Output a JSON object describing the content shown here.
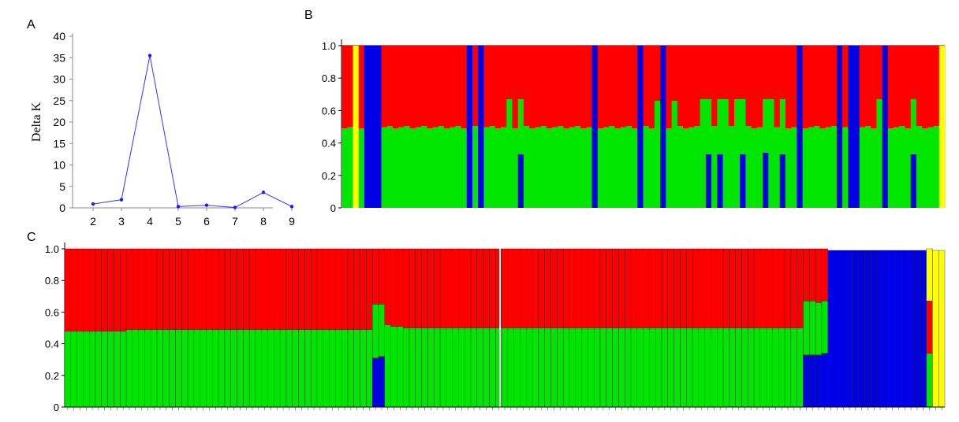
{
  "colors": {
    "red": "#ff0000",
    "green": "#00e600",
    "blue": "#0000e6",
    "yellow": "#ffff00",
    "line": "#3333ff",
    "border": "#000000"
  },
  "chart_data": [
    {
      "panel": "A",
      "type": "line",
      "ylabel": "Delta K",
      "x": [
        2,
        3,
        4,
        5,
        6,
        7,
        8,
        9
      ],
      "values": [
        0.9,
        1.9,
        35.5,
        0.3,
        0.6,
        0.1,
        3.6,
        0.3
      ],
      "ylim": [
        0,
        40
      ],
      "yticks": [
        0,
        5,
        10,
        15,
        20,
        25,
        30,
        35,
        40
      ],
      "xticks": [
        2,
        3,
        4,
        5,
        6,
        7,
        8,
        9
      ],
      "series_color": "line"
    },
    {
      "panel": "B",
      "type": "bar",
      "stacked": true,
      "ylim": [
        0,
        1
      ],
      "yticks": [
        "0",
        "0.2",
        "0.4",
        "0.6",
        "0.8",
        "1.0"
      ],
      "segments": [
        {
          "n": 2,
          "comp": "50R"
        },
        {
          "n": 1,
          "comp": "Y"
        },
        {
          "n": 1,
          "comp": "50R"
        },
        {
          "n": 3,
          "comp": "B"
        },
        {
          "n": 15,
          "comp": "50R"
        },
        {
          "n": 1,
          "comp": "B"
        },
        {
          "n": 1,
          "comp": "50R"
        },
        {
          "n": 1,
          "comp": "B"
        },
        {
          "n": 6,
          "comp": "50R"
        },
        {
          "n": 1,
          "comp": "33B"
        },
        {
          "n": 12,
          "comp": "50R"
        },
        {
          "n": 1,
          "comp": "B"
        },
        {
          "n": 7,
          "comp": "50R"
        },
        {
          "n": 1,
          "comp": "B"
        },
        {
          "n": 3,
          "comp": "50R"
        },
        {
          "n": 1,
          "comp": "B"
        },
        {
          "n": 7,
          "comp": "50R"
        },
        {
          "n": 1,
          "comp": "33B"
        },
        {
          "n": 1,
          "comp": "50R"
        },
        {
          "n": 1,
          "comp": "33B"
        },
        {
          "n": 3,
          "comp": "50R"
        },
        {
          "n": 1,
          "comp": "33B"
        },
        {
          "n": 3,
          "comp": "50R"
        },
        {
          "n": 1,
          "comp": "34B"
        },
        {
          "n": 2,
          "comp": "50R"
        },
        {
          "n": 1,
          "comp": "33B"
        },
        {
          "n": 2,
          "comp": "50R"
        },
        {
          "n": 1,
          "comp": "B"
        },
        {
          "n": 6,
          "comp": "50R"
        },
        {
          "n": 1,
          "comp": "B"
        },
        {
          "n": 1,
          "comp": "50R"
        },
        {
          "n": 2,
          "comp": "B"
        },
        {
          "n": 4,
          "comp": "50R"
        },
        {
          "n": 1,
          "comp": "B"
        },
        {
          "n": 4,
          "comp": "50R"
        },
        {
          "n": 1,
          "comp": "33B"
        },
        {
          "n": 4,
          "comp": "50R"
        },
        {
          "n": 1,
          "comp": "Y"
        }
      ],
      "greenBoost": {
        "29": 0.67,
        "55": 0.66,
        "56": 0.63,
        "58": 0.66,
        "63": 0.67,
        "67": 0.67,
        "69": 0.67,
        "70": 0.62,
        "75": 0.67,
        "94": 0.67
      }
    },
    {
      "panel": "C",
      "type": "bar",
      "stacked": true,
      "ylim": [
        0,
        1
      ],
      "yticks": [
        "0",
        "0.2",
        "0.4",
        "0.6",
        "0.8",
        "1.0"
      ],
      "bars": [
        [
          0.0,
          0.48,
          0.52,
          0.0
        ],
        [
          0.0,
          0.48,
          0.52,
          0.0
        ],
        [
          0.0,
          0.48,
          0.52,
          0.0
        ],
        [
          0.0,
          0.48,
          0.52,
          0.0
        ],
        [
          0.0,
          0.48,
          0.52,
          0.0
        ],
        [
          0.0,
          0.48,
          0.52,
          0.0
        ],
        [
          0.0,
          0.48,
          0.52,
          0.0
        ],
        [
          0.0,
          0.48,
          0.52,
          0.0
        ],
        [
          0.0,
          0.48,
          0.52,
          0.0
        ],
        [
          0.0,
          0.48,
          0.52,
          0.0
        ],
        [
          0.0,
          0.49,
          0.51,
          0.0
        ],
        [
          0.0,
          0.49,
          0.51,
          0.0
        ],
        [
          0.0,
          0.49,
          0.51,
          0.0
        ],
        [
          0.0,
          0.49,
          0.51,
          0.0
        ],
        [
          0.0,
          0.49,
          0.51,
          0.0
        ],
        [
          0.0,
          0.49,
          0.51,
          0.0
        ],
        [
          0.0,
          0.49,
          0.51,
          0.0
        ],
        [
          0.0,
          0.49,
          0.51,
          0.0
        ],
        [
          0.0,
          0.49,
          0.51,
          0.0
        ],
        [
          0.0,
          0.49,
          0.51,
          0.0
        ],
        [
          0.0,
          0.49,
          0.51,
          0.0
        ],
        [
          0.0,
          0.49,
          0.51,
          0.0
        ],
        [
          0.0,
          0.49,
          0.51,
          0.0
        ],
        [
          0.0,
          0.49,
          0.51,
          0.0
        ],
        [
          0.0,
          0.49,
          0.51,
          0.0
        ],
        [
          0.0,
          0.49,
          0.51,
          0.0
        ],
        [
          0.0,
          0.49,
          0.51,
          0.0
        ],
        [
          0.0,
          0.49,
          0.51,
          0.0
        ],
        [
          0.0,
          0.49,
          0.51,
          0.0
        ],
        [
          0.0,
          0.49,
          0.51,
          0.0
        ],
        [
          0.0,
          0.49,
          0.51,
          0.0
        ],
        [
          0.0,
          0.49,
          0.51,
          0.0
        ],
        [
          0.0,
          0.49,
          0.51,
          0.0
        ],
        [
          0.0,
          0.49,
          0.51,
          0.0
        ],
        [
          0.0,
          0.49,
          0.51,
          0.0
        ],
        [
          0.0,
          0.49,
          0.51,
          0.0
        ],
        [
          0.0,
          0.49,
          0.51,
          0.0
        ],
        [
          0.0,
          0.49,
          0.51,
          0.0
        ],
        [
          0.0,
          0.49,
          0.51,
          0.0
        ],
        [
          0.0,
          0.49,
          0.51,
          0.0
        ],
        [
          0.0,
          0.49,
          0.51,
          0.0
        ],
        [
          0.0,
          0.49,
          0.51,
          0.0
        ],
        [
          0.0,
          0.49,
          0.51,
          0.0
        ],
        [
          0.0,
          0.49,
          0.51,
          0.0
        ],
        [
          0.0,
          0.49,
          0.51,
          0.0
        ],
        [
          0.0,
          0.49,
          0.51,
          0.0
        ],
        [
          0.0,
          0.49,
          0.51,
          0.0
        ],
        [
          0.0,
          0.49,
          0.51,
          0.0
        ],
        [
          0.0,
          0.49,
          0.51,
          0.0
        ],
        [
          0.0,
          0.49,
          0.51,
          0.0
        ],
        [
          0.31,
          0.34,
          0.35,
          0.0
        ],
        [
          0.32,
          0.33,
          0.35,
          0.0
        ],
        [
          0.0,
          0.52,
          0.48,
          0.0
        ],
        [
          0.0,
          0.51,
          0.49,
          0.0
        ],
        [
          0.0,
          0.51,
          0.49,
          0.0
        ],
        [
          0.0,
          0.5,
          0.5,
          0.0
        ],
        [
          0.0,
          0.5,
          0.5,
          0.0
        ],
        [
          0.0,
          0.5,
          0.5,
          0.0
        ],
        [
          0.0,
          0.5,
          0.5,
          0.0
        ],
        [
          0.0,
          0.5,
          0.5,
          0.0
        ],
        [
          0.0,
          0.5,
          0.5,
          0.0
        ],
        [
          0.0,
          0.5,
          0.5,
          0.0
        ],
        [
          0.0,
          0.5,
          0.5,
          0.0
        ],
        [
          0.0,
          0.5,
          0.5,
          0.0
        ],
        [
          0.0,
          0.5,
          0.5,
          0.0
        ],
        [
          0.0,
          0.5,
          0.5,
          0.0
        ],
        [
          0.0,
          0.5,
          0.5,
          0.0
        ],
        [
          0.0,
          0.5,
          0.5,
          0.0
        ],
        [
          0.0,
          0.5,
          0.5,
          0.0
        ],
        [
          0.0,
          0.5,
          0.5,
          0.0
        ],
        [
          0.0,
          0.5,
          0.5,
          0.0
        ],
        [
          0.0,
          0.5,
          0.5,
          0.0
        ],
        [
          0.0,
          0.5,
          0.5,
          0.0
        ],
        [
          0.0,
          0.5,
          0.5,
          0.0
        ],
        [
          0.0,
          0.5,
          0.5,
          0.0
        ],
        [
          0.0,
          0.5,
          0.5,
          0.0
        ],
        [
          0.0,
          0.5,
          0.5,
          0.0
        ],
        [
          0.0,
          0.5,
          0.5,
          0.0
        ],
        [
          0.0,
          0.5,
          0.5,
          0.0
        ],
        [
          0.0,
          0.5,
          0.5,
          0.0
        ],
        [
          0.0,
          0.5,
          0.5,
          0.0
        ],
        [
          0.0,
          0.5,
          0.5,
          0.0
        ],
        [
          0.0,
          0.5,
          0.5,
          0.0
        ],
        [
          0.0,
          0.5,
          0.5,
          0.0
        ],
        [
          0.0,
          0.5,
          0.5,
          0.0
        ],
        [
          0.0,
          0.5,
          0.5,
          0.0
        ],
        [
          0.0,
          0.5,
          0.5,
          0.0
        ],
        [
          0.0,
          0.5,
          0.5,
          0.0
        ],
        [
          0.0,
          0.5,
          0.5,
          0.0
        ],
        [
          0.0,
          0.5,
          0.5,
          0.0
        ],
        [
          0.0,
          0.5,
          0.5,
          0.0
        ],
        [
          0.0,
          0.5,
          0.5,
          0.0
        ],
        [
          0.0,
          0.5,
          0.5,
          0.0
        ],
        [
          0.0,
          0.5,
          0.5,
          0.0
        ],
        [
          0.0,
          0.5,
          0.5,
          0.0
        ],
        [
          0.0,
          0.5,
          0.5,
          0.0
        ],
        [
          0.0,
          0.5,
          0.5,
          0.0
        ],
        [
          0.0,
          0.5,
          0.5,
          0.0
        ],
        [
          0.0,
          0.5,
          0.5,
          0.0
        ],
        [
          0.0,
          0.5,
          0.5,
          0.0
        ],
        [
          0.0,
          0.5,
          0.5,
          0.0
        ],
        [
          0.0,
          0.5,
          0.5,
          0.0
        ],
        [
          0.0,
          0.5,
          0.5,
          0.0
        ],
        [
          0.0,
          0.5,
          0.5,
          0.0
        ],
        [
          0.0,
          0.5,
          0.5,
          0.0
        ],
        [
          0.0,
          0.5,
          0.5,
          0.0
        ],
        [
          0.0,
          0.5,
          0.5,
          0.0
        ],
        [
          0.0,
          0.5,
          0.5,
          0.0
        ],
        [
          0.0,
          0.5,
          0.5,
          0.0
        ],
        [
          0.0,
          0.5,
          0.5,
          0.0
        ],
        [
          0.0,
          0.5,
          0.5,
          0.0
        ],
        [
          0.0,
          0.5,
          0.5,
          0.0
        ],
        [
          0.0,
          0.5,
          0.5,
          0.0
        ],
        [
          0.0,
          0.5,
          0.5,
          0.0
        ],
        [
          0.0,
          0.5,
          0.5,
          0.0
        ],
        [
          0.0,
          0.5,
          0.5,
          0.0
        ],
        [
          0.0,
          0.5,
          0.5,
          0.0
        ],
        [
          0.0,
          0.5,
          0.5,
          0.0
        ],
        [
          0.0,
          0.5,
          0.5,
          0.0
        ],
        [
          0.0,
          0.5,
          0.5,
          0.0
        ],
        [
          0.0,
          0.5,
          0.5,
          0.0
        ],
        [
          0.0,
          0.5,
          0.5,
          0.0
        ],
        [
          0.0,
          0.5,
          0.5,
          0.0
        ],
        [
          0.0,
          0.5,
          0.5,
          0.0
        ],
        [
          0.0,
          0.5,
          0.5,
          0.0
        ],
        [
          0.0,
          0.5,
          0.5,
          0.0
        ],
        [
          0.0,
          0.5,
          0.5,
          0.0
        ],
        [
          0.0,
          0.5,
          0.5,
          0.0
        ],
        [
          0.0,
          0.5,
          0.5,
          0.0
        ],
        [
          0.0,
          0.5,
          0.5,
          0.0
        ],
        [
          0.0,
          0.5,
          0.5,
          0.0
        ],
        [
          0.0,
          0.5,
          0.5,
          0.0
        ],
        [
          0.0,
          0.5,
          0.5,
          0.0
        ],
        [
          0.0,
          0.5,
          0.5,
          0.0
        ],
        [
          0.0,
          0.5,
          0.5,
          0.0
        ],
        [
          0.0,
          0.5,
          0.5,
          0.0
        ],
        [
          0.0,
          0.5,
          0.5,
          0.0
        ],
        [
          0.0,
          0.5,
          0.5,
          0.0
        ],
        [
          0.0,
          0.5,
          0.5,
          0.0
        ],
        [
          0.0,
          0.5,
          0.5,
          0.0
        ],
        [
          0.0,
          0.5,
          0.5,
          0.0
        ],
        [
          0.0,
          0.5,
          0.5,
          0.0
        ],
        [
          0.0,
          0.5,
          0.5,
          0.0
        ],
        [
          0.0,
          0.5,
          0.5,
          0.0
        ],
        [
          0.0,
          0.5,
          0.5,
          0.0
        ],
        [
          0.0,
          0.5,
          0.5,
          0.0
        ],
        [
          0.0,
          0.5,
          0.5,
          0.0
        ],
        [
          0.0,
          0.5,
          0.5,
          0.0
        ],
        [
          0.0,
          0.5,
          0.5,
          0.0
        ],
        [
          0.0,
          0.5,
          0.5,
          0.0
        ],
        [
          0.0,
          0.5,
          0.5,
          0.0
        ],
        [
          0.0,
          0.5,
          0.5,
          0.0
        ],
        [
          0.0,
          0.5,
          0.5,
          0.0
        ],
        [
          0.0,
          0.5,
          0.5,
          0.0
        ],
        [
          0.0,
          0.5,
          0.5,
          0.0
        ],
        [
          0.0,
          0.5,
          0.5,
          0.0
        ],
        [
          0.0,
          0.5,
          0.5,
          0.0
        ],
        [
          0.0,
          0.5,
          0.5,
          0.0
        ],
        [
          0.0,
          0.5,
          0.5,
          0.0
        ],
        [
          0.0,
          0.5,
          0.5,
          0.0
        ],
        [
          0.0,
          0.5,
          0.5,
          0.0
        ],
        [
          0.0,
          0.5,
          0.5,
          0.0
        ],
        [
          0.0,
          0.5,
          0.5,
          0.0
        ],
        [
          0.0,
          0.5,
          0.5,
          0.0
        ],
        [
          0.0,
          0.5,
          0.5,
          0.0
        ],
        [
          0.0,
          0.5,
          0.5,
          0.0
        ],
        [
          0.0,
          0.5,
          0.5,
          0.0
        ],
        [
          0.0,
          0.5,
          0.5,
          0.0
        ],
        [
          0.0,
          0.5,
          0.5,
          0.0
        ],
        [
          0.0,
          0.5,
          0.5,
          0.0
        ]
      ],
      "bars_tail": [
        [
          0.33,
          0.34,
          0.33,
          0.0
        ],
        [
          0.33,
          0.34,
          0.33,
          0.0
        ],
        [
          0.33,
          0.33,
          0.34,
          0.0
        ],
        [
          0.34,
          0.33,
          0.33,
          0.0
        ],
        [
          0.99,
          0.0,
          0.0,
          0.0
        ],
        [
          0.99,
          0.0,
          0.0,
          0.0
        ],
        [
          0.99,
          0.0,
          0.0,
          0.0
        ],
        [
          0.99,
          0.0,
          0.0,
          0.0
        ],
        [
          0.99,
          0.0,
          0.0,
          0.0
        ],
        [
          0.99,
          0.0,
          0.0,
          0.0
        ],
        [
          0.99,
          0.0,
          0.0,
          0.0
        ],
        [
          0.99,
          0.0,
          0.0,
          0.0
        ],
        [
          0.99,
          0.0,
          0.0,
          0.0
        ],
        [
          0.99,
          0.0,
          0.0,
          0.0
        ],
        [
          0.99,
          0.0,
          0.0,
          0.0
        ],
        [
          0.99,
          0.0,
          0.0,
          0.0
        ],
        [
          0.99,
          0.0,
          0.0,
          0.0
        ],
        [
          0.99,
          0.0,
          0.0,
          0.0
        ],
        [
          0.99,
          0.0,
          0.0,
          0.0
        ],
        [
          0.99,
          0.0,
          0.0,
          0.0
        ],
        [
          0.0,
          0.34,
          0.33,
          0.33
        ],
        [
          0.0,
          0.0,
          0.0,
          0.99
        ],
        [
          0.0,
          0.0,
          0.0,
          0.99
        ]
      ]
    }
  ],
  "labels": {
    "panel_a": "A",
    "panel_b": "B",
    "panel_c": "C"
  }
}
